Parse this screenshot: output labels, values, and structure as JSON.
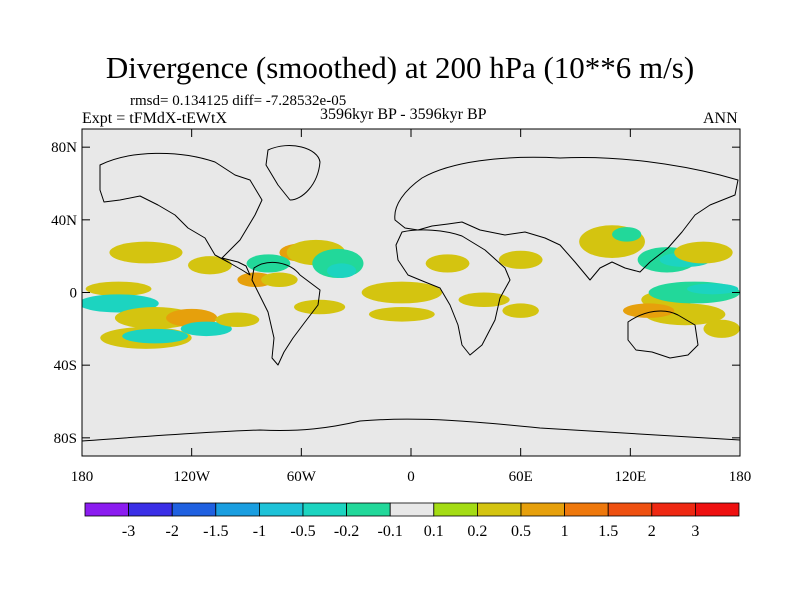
{
  "chart_data": {
    "type": "heatmap",
    "title": "Divergence (smoothed) at 200 hPa (10**6 m/s)",
    "stats": "rmsd= 0.134125 diff= -7.28532e-05",
    "experiment": "Expt = tFMdX-tEWtX",
    "period": "3596kyr BP - 3596kyr BP",
    "season": "ANN",
    "x_range": [
      -180,
      180
    ],
    "y_range": [
      -90,
      90
    ],
    "x_ticks": [
      {
        "value": -180,
        "label": "180"
      },
      {
        "value": -120,
        "label": "120W"
      },
      {
        "value": -60,
        "label": "60W"
      },
      {
        "value": 0,
        "label": "0"
      },
      {
        "value": 60,
        "label": "60E"
      },
      {
        "value": 120,
        "label": "120E"
      },
      {
        "value": 180,
        "label": "180"
      }
    ],
    "y_ticks": [
      {
        "value": 80,
        "label": "80N"
      },
      {
        "value": 40,
        "label": "40N"
      },
      {
        "value": 0,
        "label": "0"
      },
      {
        "value": -40,
        "label": "40S"
      },
      {
        "value": -80,
        "label": "80S"
      }
    ],
    "colorbar_labels": [
      "-3",
      "-2",
      "-1.5",
      "-1",
      "-0.5",
      "-0.2",
      "-0.1",
      "0.1",
      "0.2",
      "0.5",
      "1",
      "1.5",
      "2",
      "3"
    ],
    "colorbar_colors": [
      "#8b1cf0",
      "#3a2ee6",
      "#1f60e0",
      "#1a9ee0",
      "#1ec2d8",
      "#1cd4c0",
      "#22d89a",
      "#e8e8e8",
      "#a4dc14",
      "#d4c410",
      "#e6a00c",
      "#ee780c",
      "#ee5010",
      "#ee2812",
      "#ee1010"
    ],
    "background_color": "#e8e8e8",
    "regions": [
      {
        "lon": -145,
        "lat": 22,
        "rx": 20,
        "ry": 6,
        "level": 0.2
      },
      {
        "lon": -110,
        "lat": 15,
        "rx": 12,
        "ry": 5,
        "level": 0.2
      },
      {
        "lon": -160,
        "lat": 2,
        "rx": 18,
        "ry": 4,
        "level": 0.2
      },
      {
        "lon": -160,
        "lat": -6,
        "rx": 22,
        "ry": 5,
        "level": -0.5
      },
      {
        "lon": -140,
        "lat": -14,
        "rx": 22,
        "ry": 6,
        "level": 0.2
      },
      {
        "lon": -120,
        "lat": -14,
        "rx": 14,
        "ry": 5,
        "level": 0.5
      },
      {
        "lon": -145,
        "lat": -25,
        "rx": 25,
        "ry": 6,
        "level": 0.2
      },
      {
        "lon": -140,
        "lat": -24,
        "rx": 18,
        "ry": 4,
        "level": -0.5
      },
      {
        "lon": -112,
        "lat": -20,
        "rx": 14,
        "ry": 4,
        "level": -0.5
      },
      {
        "lon": -95,
        "lat": -15,
        "rx": 12,
        "ry": 4,
        "level": 0.2
      },
      {
        "lon": -60,
        "lat": 22,
        "rx": 12,
        "ry": 5,
        "level": 0.5
      },
      {
        "lon": -52,
        "lat": 22,
        "rx": 16,
        "ry": 7,
        "level": 0.2
      },
      {
        "lon": -40,
        "lat": 16,
        "rx": 14,
        "ry": 8,
        "level": -0.2
      },
      {
        "lon": -78,
        "lat": 16,
        "rx": 12,
        "ry": 5,
        "level": -0.2
      },
      {
        "lon": -85,
        "lat": 7,
        "rx": 10,
        "ry": 4,
        "level": 0.5
      },
      {
        "lon": -72,
        "lat": 7,
        "rx": 10,
        "ry": 4,
        "level": 0.2
      },
      {
        "lon": -38,
        "lat": 12,
        "rx": 8,
        "ry": 4,
        "level": -0.5
      },
      {
        "lon": -50,
        "lat": -8,
        "rx": 14,
        "ry": 4,
        "level": 0.2
      },
      {
        "lon": -10,
        "lat": 0,
        "rx": 16,
        "ry": 4,
        "level": 0.5
      },
      {
        "lon": -5,
        "lat": 0,
        "rx": 22,
        "ry": 6,
        "level": 0.2
      },
      {
        "lon": -5,
        "lat": -12,
        "rx": 18,
        "ry": 4,
        "level": 0.2
      },
      {
        "lon": 20,
        "lat": 16,
        "rx": 12,
        "ry": 5,
        "level": 0.2
      },
      {
        "lon": 40,
        "lat": -4,
        "rx": 14,
        "ry": 4,
        "level": 0.2
      },
      {
        "lon": 60,
        "lat": -10,
        "rx": 10,
        "ry": 4,
        "level": 0.2
      },
      {
        "lon": 60,
        "lat": 18,
        "rx": 12,
        "ry": 5,
        "level": 0.2
      },
      {
        "lon": 110,
        "lat": 28,
        "rx": 18,
        "ry": 9,
        "level": 0.2
      },
      {
        "lon": 118,
        "lat": 32,
        "rx": 8,
        "ry": 4,
        "level": -0.2
      },
      {
        "lon": 140,
        "lat": 18,
        "rx": 16,
        "ry": 7,
        "level": -0.2
      },
      {
        "lon": 150,
        "lat": 18,
        "rx": 14,
        "ry": 4,
        "level": -0.5
      },
      {
        "lon": 160,
        "lat": 22,
        "rx": 16,
        "ry": 6,
        "level": 0.2
      },
      {
        "lon": 140,
        "lat": -4,
        "rx": 14,
        "ry": 5,
        "level": 0.2
      },
      {
        "lon": 155,
        "lat": 0,
        "rx": 25,
        "ry": 6,
        "level": -0.2
      },
      {
        "lon": 165,
        "lat": 2,
        "rx": 14,
        "ry": 3,
        "level": -0.5
      },
      {
        "lon": 150,
        "lat": -12,
        "rx": 22,
        "ry": 6,
        "level": 0.2
      },
      {
        "lon": 130,
        "lat": -10,
        "rx": 14,
        "ry": 4,
        "level": 0.5
      },
      {
        "lon": 170,
        "lat": -20,
        "rx": 10,
        "ry": 5,
        "level": 0.2
      }
    ]
  }
}
